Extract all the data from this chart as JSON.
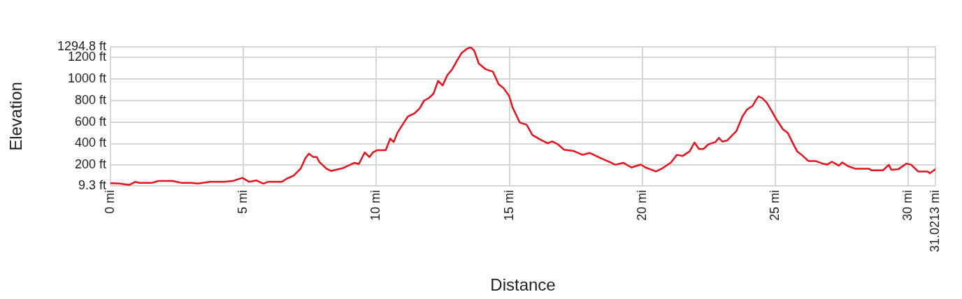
{
  "chart_data": {
    "type": "line",
    "xlabel": "Distance",
    "ylabel": "Elevation",
    "x": [
      0,
      0.35,
      0.71,
      0.93,
      1.1,
      1.54,
      1.81,
      1.98,
      2.33,
      2.68,
      3.03,
      3.29,
      3.73,
      4.26,
      4.61,
      4.96,
      5.22,
      5.49,
      5.75,
      5.92,
      6.45,
      6.62,
      6.89,
      7.15,
      7.33,
      7.46,
      7.63,
      7.76,
      7.85,
      8.12,
      8.29,
      8.73,
      9.17,
      9.34,
      9.56,
      9.74,
      9.87,
      10.04,
      10.35,
      10.52,
      10.65,
      10.79,
      11.01,
      11.18,
      11.44,
      11.62,
      11.8,
      11.97,
      12.15,
      12.32,
      12.49,
      12.67,
      12.85,
      13.02,
      13.2,
      13.42,
      13.55,
      13.68,
      13.85,
      14.11,
      14.38,
      14.6,
      14.77,
      14.99,
      15.12,
      15.39,
      15.65,
      15.87,
      16.18,
      16.44,
      16.61,
      16.83,
      17.05,
      17.4,
      17.75,
      18.02,
      18.45,
      18.8,
      18.98,
      19.29,
      19.59,
      19.94,
      20.12,
      20.51,
      20.73,
      21.08,
      21.3,
      21.52,
      21.78,
      21.96,
      22.13,
      22.3,
      22.48,
      22.75,
      22.88,
      23.01,
      23.19,
      23.54,
      23.76,
      23.93,
      24.15,
      24.29,
      24.37,
      24.51,
      24.68,
      24.86,
      25.03,
      25.29,
      25.47,
      25.64,
      25.82,
      25.99,
      26.25,
      26.52,
      26.78,
      26.95,
      27.13,
      27.39,
      27.52,
      27.74,
      28,
      28.53,
      28.61,
      29.05,
      29.27,
      29.36,
      29.62,
      29.93,
      30.11,
      30.37,
      30.72,
      30.81,
      31.02
    ],
    "series": [
      {
        "color": "#e3121c",
        "values": [
          33,
          30,
          18,
          46,
          36,
          36,
          55,
          55,
          55,
          36,
          36,
          30,
          46,
          46,
          55,
          83,
          46,
          59,
          30,
          46,
          46,
          74,
          104,
          168,
          264,
          307,
          275,
          275,
          232,
          168,
          147,
          172,
          222,
          211,
          318,
          275,
          318,
          339,
          339,
          446,
          414,
          499,
          585,
          649,
          681,
          724,
          799,
          820,
          863,
          980,
          937,
          1033,
          1087,
          1161,
          1236,
          1279,
          1290,
          1258,
          1140,
          1087,
          1065,
          948,
          916,
          841,
          735,
          595,
          574,
          478,
          435,
          403,
          420,
          392,
          344,
          333,
          296,
          313,
          264,
          226,
          204,
          222,
          179,
          206,
          179,
          142,
          168,
          226,
          296,
          286,
          328,
          410,
          350,
          350,
          392,
          414,
          453,
          418,
          429,
          517,
          649,
          713,
          749,
          809,
          837,
          820,
          777,
          703,
          628,
          531,
          499,
          414,
          328,
          296,
          238,
          238,
          215,
          206,
          232,
          196,
          226,
          190,
          168,
          168,
          153,
          153,
          204,
          158,
          162,
          215,
          204,
          142,
          142,
          126,
          162
        ]
      }
    ],
    "xlim": [
      0,
      31.0213
    ],
    "ylim": [
      9.3,
      1294.8
    ],
    "xticks": [
      {
        "value": 0,
        "label": "0 mi"
      },
      {
        "value": 5,
        "label": "5 mi"
      },
      {
        "value": 10,
        "label": "10 mi"
      },
      {
        "value": 15,
        "label": "15 mi"
      },
      {
        "value": 20,
        "label": "20 mi"
      },
      {
        "value": 25,
        "label": "25 mi"
      },
      {
        "value": 30,
        "label": "30 mi"
      },
      {
        "value": 31.0213,
        "label": "31.0213 mi"
      }
    ],
    "yticks": [
      {
        "value": 9.3,
        "label": "9.3 ft"
      },
      {
        "value": 200,
        "label": "200 ft"
      },
      {
        "value": 400,
        "label": "400 ft"
      },
      {
        "value": 600,
        "label": "600 ft"
      },
      {
        "value": 800,
        "label": "800 ft"
      },
      {
        "value": 1000,
        "label": "1000 ft"
      },
      {
        "value": 1200,
        "label": "1200 ft"
      },
      {
        "value": 1294.8,
        "label": "1294.8 ft"
      }
    ],
    "grid": true
  }
}
